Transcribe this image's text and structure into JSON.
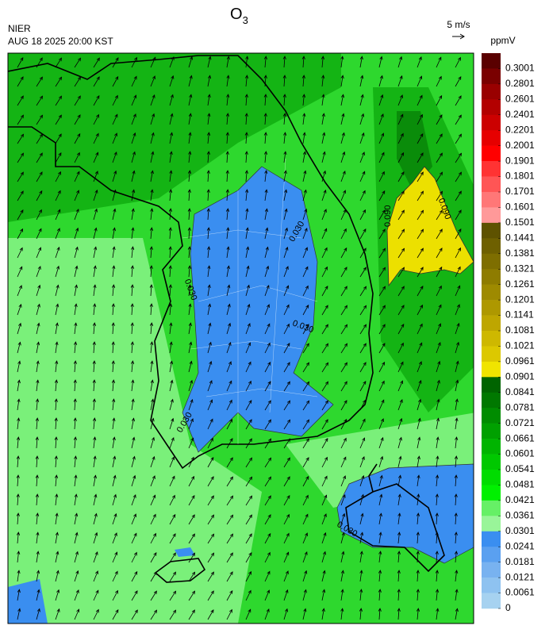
{
  "title": {
    "main": "O",
    "subscript": "3"
  },
  "agency": "NIER",
  "timestamp": "AUG 18 2025 20:00 KST",
  "wind_scale": "5 m/s",
  "unit": "ppmV",
  "colorbar": {
    "labels": [
      0.3001,
      0.2801,
      0.2601,
      0.2401,
      0.2201,
      0.2001,
      0.1901,
      0.1801,
      0.1701,
      0.1601,
      0.1501,
      0.1441,
      0.1381,
      0.1321,
      0.1261,
      0.1201,
      0.1141,
      0.1081,
      0.1021,
      0.0961,
      0.0901,
      0.0841,
      0.0781,
      0.0721,
      0.0661,
      0.0601,
      0.0541,
      0.0481,
      0.0421,
      0.0361,
      0.0301,
      0.0241,
      0.0181,
      0.0121,
      0.0061,
      0
    ],
    "colors": [
      "#5a0000",
      "#7a0000",
      "#990000",
      "#b30000",
      "#cc0000",
      "#e60000",
      "#ff0000",
      "#ff3333",
      "#ff5555",
      "#ff7777",
      "#ff9999",
      "#5e5200",
      "#6e6000",
      "#7e6e00",
      "#8e7c00",
      "#9e8a00",
      "#ae9800",
      "#bea600",
      "#ceb800",
      "#dcc800",
      "#f0e400",
      "#006400",
      "#007800",
      "#008c00",
      "#00a000",
      "#00b400",
      "#00c800",
      "#00dc00",
      "#00f000",
      "#66f066",
      "#99f599",
      "#3a8ef0",
      "#5aa0f0",
      "#78b2f0",
      "#8ec2f0",
      "#a6d2f0"
    ]
  },
  "contour_labels": [
    "0.030",
    "0.030",
    "0.030",
    "0.030",
    "0.030",
    "0.090",
    "0.090"
  ]
}
